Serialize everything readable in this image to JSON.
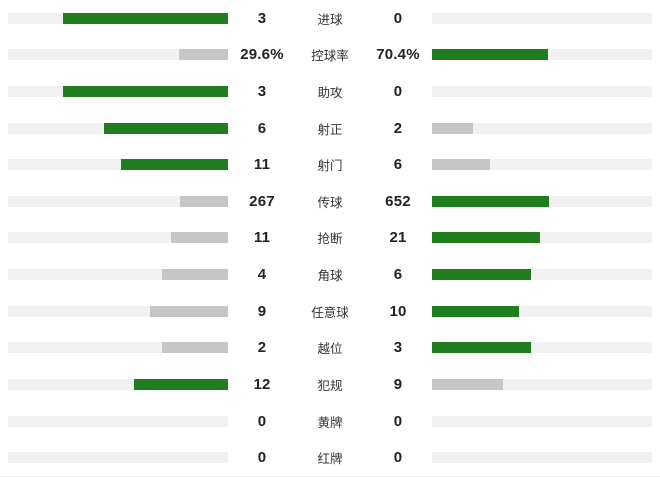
{
  "colors": {
    "win_bar": "#1f7c1f",
    "lose_bar": "#c6c6c6",
    "track": "#f1f1f1",
    "value_text": "#222222",
    "label_text": "#333333"
  },
  "chart_data": {
    "type": "bar",
    "subtype": "mirrored-comparison",
    "title": "",
    "categories": [
      "进球",
      "控球率",
      "助攻",
      "射正",
      "射门",
      "传球",
      "抢断",
      "角球",
      "任意球",
      "越位",
      "犯规",
      "黄牌",
      "红牌"
    ],
    "series": [
      {
        "name": "home",
        "side": "left",
        "values": [
          3,
          29.6,
          3,
          6,
          11,
          267,
          11,
          4,
          9,
          2,
          12,
          0,
          0
        ],
        "labels": [
          "3",
          "29.6%",
          "3",
          "6",
          "11",
          "267",
          "11",
          "4",
          "9",
          "2",
          "12",
          "0",
          "0"
        ]
      },
      {
        "name": "away",
        "side": "right",
        "values": [
          0,
          70.4,
          0,
          2,
          6,
          652,
          21,
          6,
          10,
          3,
          9,
          0,
          0
        ],
        "labels": [
          "0",
          "70.4%",
          "0",
          "2",
          "6",
          "652",
          "21",
          "6",
          "10",
          "3",
          "9",
          "0",
          "0"
        ]
      }
    ],
    "layout": {
      "bar_scale": "value / (home + away)",
      "higher_value_color": "#1f7c1f",
      "lower_value_color": "#c6c6c6",
      "grid": false,
      "legend": false
    }
  },
  "rows": [
    {
      "label": "进球",
      "home": "3",
      "away": "0",
      "home_num": 3,
      "away_num": 0
    },
    {
      "label": "控球率",
      "home": "29.6%",
      "away": "70.4%",
      "home_num": 29.6,
      "away_num": 70.4
    },
    {
      "label": "助攻",
      "home": "3",
      "away": "0",
      "home_num": 3,
      "away_num": 0
    },
    {
      "label": "射正",
      "home": "6",
      "away": "2",
      "home_num": 6,
      "away_num": 2
    },
    {
      "label": "射门",
      "home": "11",
      "away": "6",
      "home_num": 11,
      "away_num": 6
    },
    {
      "label": "传球",
      "home": "267",
      "away": "652",
      "home_num": 267,
      "away_num": 652
    },
    {
      "label": "抢断",
      "home": "11",
      "away": "21",
      "home_num": 11,
      "away_num": 21
    },
    {
      "label": "角球",
      "home": "4",
      "away": "6",
      "home_num": 4,
      "away_num": 6
    },
    {
      "label": "任意球",
      "home": "9",
      "away": "10",
      "home_num": 9,
      "away_num": 10
    },
    {
      "label": "越位",
      "home": "2",
      "away": "3",
      "home_num": 2,
      "away_num": 3
    },
    {
      "label": "犯规",
      "home": "12",
      "away": "9",
      "home_num": 12,
      "away_num": 9
    },
    {
      "label": "黄牌",
      "home": "0",
      "away": "0",
      "home_num": 0,
      "away_num": 0
    },
    {
      "label": "红牌",
      "home": "0",
      "away": "0",
      "home_num": 0,
      "away_num": 0
    }
  ]
}
